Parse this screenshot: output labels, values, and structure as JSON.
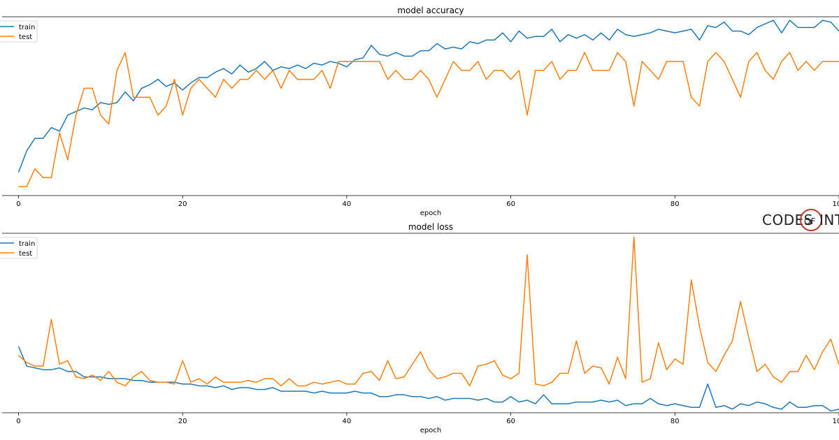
{
  "colors": {
    "train": "#1f77b4",
    "test": "#ff7f0e",
    "axis": "#000000",
    "watermark_ring": "#c0392b"
  },
  "watermark": {
    "left": "CODES",
    "mid": "OF",
    "right": "INTE"
  },
  "chart_data": [
    {
      "type": "line",
      "title": "model accuracy",
      "xlabel": "epoch",
      "ylabel": "",
      "xlim": [
        -2,
        100
      ],
      "ylim": [
        0.0,
        1.0
      ],
      "xticks": [
        0,
        20,
        40,
        60,
        80,
        100
      ],
      "yticks_shown": false,
      "grid": false,
      "legend": "top-left",
      "series": [
        {
          "name": "train",
          "values": [
            0.13,
            0.25,
            0.32,
            0.32,
            0.38,
            0.36,
            0.45,
            0.47,
            0.49,
            0.48,
            0.52,
            0.51,
            0.52,
            0.58,
            0.53,
            0.6,
            0.62,
            0.65,
            0.61,
            0.63,
            0.59,
            0.63,
            0.66,
            0.66,
            0.69,
            0.71,
            0.68,
            0.73,
            0.69,
            0.71,
            0.75,
            0.7,
            0.72,
            0.71,
            0.73,
            0.71,
            0.74,
            0.73,
            0.75,
            0.74,
            0.72,
            0.76,
            0.77,
            0.84,
            0.79,
            0.78,
            0.8,
            0.78,
            0.78,
            0.81,
            0.81,
            0.85,
            0.82,
            0.83,
            0.82,
            0.86,
            0.85,
            0.87,
            0.87,
            0.91,
            0.86,
            0.92,
            0.88,
            0.89,
            0.89,
            0.93,
            0.86,
            0.9,
            0.88,
            0.9,
            0.87,
            0.91,
            0.87,
            0.93,
            0.9,
            0.89,
            0.9,
            0.91,
            0.93,
            0.92,
            0.91,
            0.92,
            0.93,
            0.87,
            0.95,
            0.94,
            0.97,
            0.92,
            0.92,
            0.9,
            0.94,
            0.96,
            0.98,
            0.91,
            0.98,
            0.94,
            0.94,
            0.94,
            0.98,
            0.97,
            0.92
          ]
        },
        {
          "name": "test",
          "values": [
            0.05,
            0.05,
            0.15,
            0.1,
            0.1,
            0.35,
            0.2,
            0.45,
            0.6,
            0.6,
            0.45,
            0.4,
            0.7,
            0.8,
            0.55,
            0.55,
            0.55,
            0.45,
            0.5,
            0.65,
            0.45,
            0.6,
            0.65,
            0.6,
            0.55,
            0.65,
            0.6,
            0.65,
            0.65,
            0.7,
            0.65,
            0.7,
            0.6,
            0.7,
            0.65,
            0.65,
            0.65,
            0.7,
            0.6,
            0.75,
            0.75,
            0.75,
            0.75,
            0.75,
            0.75,
            0.65,
            0.7,
            0.65,
            0.65,
            0.7,
            0.65,
            0.55,
            0.65,
            0.75,
            0.7,
            0.7,
            0.75,
            0.65,
            0.7,
            0.7,
            0.65,
            0.7,
            0.45,
            0.7,
            0.7,
            0.75,
            0.65,
            0.7,
            0.7,
            0.8,
            0.7,
            0.7,
            0.7,
            0.8,
            0.75,
            0.5,
            0.75,
            0.7,
            0.65,
            0.75,
            0.75,
            0.75,
            0.55,
            0.5,
            0.75,
            0.8,
            0.75,
            0.65,
            0.55,
            0.75,
            0.8,
            0.7,
            0.65,
            0.75,
            0.8,
            0.7,
            0.75,
            0.7,
            0.75,
            0.75,
            0.75
          ]
        }
      ]
    },
    {
      "type": "line",
      "title": "model loss",
      "xlabel": "epoch",
      "ylabel": "",
      "xlim": [
        -2,
        100
      ],
      "ylim": [
        0.0,
        1.0
      ],
      "xticks": [
        0,
        20,
        40,
        60,
        80,
        100
      ],
      "yticks_shown": false,
      "grid": false,
      "legend": "top-left",
      "series": [
        {
          "name": "train",
          "values": [
            0.37,
            0.26,
            0.25,
            0.24,
            0.24,
            0.25,
            0.23,
            0.23,
            0.2,
            0.2,
            0.2,
            0.19,
            0.19,
            0.19,
            0.18,
            0.18,
            0.17,
            0.17,
            0.17,
            0.17,
            0.16,
            0.16,
            0.15,
            0.15,
            0.14,
            0.15,
            0.13,
            0.14,
            0.14,
            0.13,
            0.13,
            0.14,
            0.12,
            0.12,
            0.12,
            0.12,
            0.11,
            0.12,
            0.11,
            0.11,
            0.11,
            0.12,
            0.11,
            0.11,
            0.09,
            0.09,
            0.1,
            0.1,
            0.09,
            0.09,
            0.08,
            0.09,
            0.07,
            0.08,
            0.08,
            0.08,
            0.07,
            0.08,
            0.06,
            0.06,
            0.09,
            0.06,
            0.07,
            0.05,
            0.1,
            0.05,
            0.05,
            0.05,
            0.06,
            0.06,
            0.06,
            0.07,
            0.06,
            0.07,
            0.04,
            0.05,
            0.05,
            0.08,
            0.05,
            0.04,
            0.05,
            0.04,
            0.03,
            0.03,
            0.16,
            0.03,
            0.04,
            0.02,
            0.05,
            0.04,
            0.06,
            0.05,
            0.03,
            0.02,
            0.06,
            0.03,
            0.03,
            0.04,
            0.04,
            0.01,
            0.02,
            0.03,
            0.07
          ]
        },
        {
          "name": "test",
          "values": [
            0.32,
            0.28,
            0.26,
            0.26,
            0.52,
            0.27,
            0.29,
            0.2,
            0.19,
            0.21,
            0.18,
            0.23,
            0.17,
            0.15,
            0.2,
            0.23,
            0.18,
            0.17,
            0.17,
            0.16,
            0.29,
            0.17,
            0.19,
            0.16,
            0.2,
            0.17,
            0.17,
            0.17,
            0.18,
            0.17,
            0.19,
            0.19,
            0.15,
            0.19,
            0.15,
            0.15,
            0.17,
            0.16,
            0.17,
            0.18,
            0.16,
            0.16,
            0.22,
            0.23,
            0.18,
            0.29,
            0.19,
            0.2,
            0.27,
            0.34,
            0.24,
            0.19,
            0.2,
            0.22,
            0.22,
            0.15,
            0.26,
            0.27,
            0.29,
            0.21,
            0.19,
            0.22,
            0.88,
            0.16,
            0.15,
            0.17,
            0.22,
            0.22,
            0.4,
            0.22,
            0.26,
            0.25,
            0.16,
            0.31,
            0.19,
            0.98,
            0.17,
            0.19,
            0.39,
            0.24,
            0.3,
            0.27,
            0.74,
            0.48,
            0.28,
            0.23,
            0.32,
            0.4,
            0.62,
            0.42,
            0.23,
            0.27,
            0.2,
            0.17,
            0.23,
            0.23,
            0.32,
            0.24,
            0.34,
            0.41,
            0.27
          ]
        }
      ]
    }
  ]
}
